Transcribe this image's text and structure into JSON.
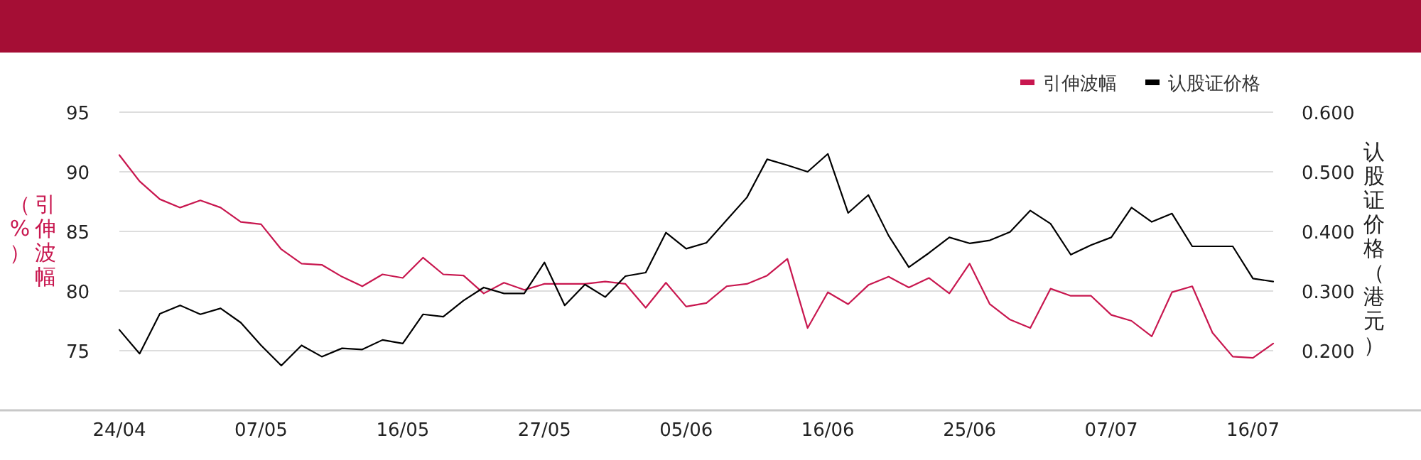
{
  "chart_data": {
    "type": "line",
    "categories": [
      "24/04",
      null,
      null,
      null,
      null,
      null,
      null,
      "07/05",
      null,
      null,
      null,
      null,
      null,
      null,
      "16/05",
      null,
      null,
      null,
      null,
      null,
      null,
      "27/05",
      null,
      null,
      null,
      null,
      null,
      null,
      "05/06",
      null,
      null,
      null,
      null,
      null,
      null,
      "16/06",
      null,
      null,
      null,
      null,
      null,
      null,
      "25/06",
      null,
      null,
      null,
      null,
      null,
      null,
      "07/07",
      null,
      null,
      null,
      null,
      null,
      null,
      "16/07",
      null
    ],
    "series": [
      {
        "name": "引伸波幅",
        "color": "#c8174f",
        "values": [
          91.4,
          89.2,
          87.7,
          87.0,
          87.6,
          87.0,
          85.8,
          85.6,
          83.5,
          82.3,
          82.2,
          81.2,
          80.4,
          81.4,
          81.1,
          82.8,
          81.4,
          81.3,
          79.8,
          80.7,
          80.1,
          80.6,
          80.6,
          80.6,
          80.8,
          80.6,
          78.6,
          80.7,
          78.7,
          79.0,
          80.4,
          80.6,
          81.3,
          82.7,
          76.9,
          79.9,
          78.9,
          80.5,
          81.2,
          80.3,
          81.1,
          79.8,
          82.3,
          78.9,
          77.6,
          76.9,
          80.2,
          79.6,
          79.6,
          78.0,
          77.5,
          76.2,
          79.9,
          80.4,
          76.5,
          74.5,
          74.4,
          75.6
        ]
      },
      {
        "name": "认股证价格",
        "color": "#000000",
        "axis": "y2",
        "values": [
          0.235,
          0.195,
          0.262,
          0.276,
          0.261,
          0.271,
          0.247,
          0.209,
          0.175,
          0.209,
          0.19,
          0.204,
          0.202,
          0.218,
          0.212,
          0.261,
          0.257,
          0.284,
          0.306,
          0.296,
          0.296,
          0.348,
          0.276,
          0.311,
          0.29,
          0.325,
          0.331,
          0.398,
          0.371,
          0.381,
          0.419,
          0.457,
          0.521,
          0.511,
          0.5,
          0.53,
          0.431,
          0.461,
          0.393,
          0.34,
          0.364,
          0.39,
          0.38,
          0.385,
          0.399,
          0.435,
          0.413,
          0.361,
          0.377,
          0.39,
          0.44,
          0.416,
          0.43,
          0.375,
          0.375,
          0.375,
          0.321,
          0.316
        ]
      }
    ],
    "ylabel": "引伸波幅（%）",
    "y2label": "认股证价格（港元）",
    "ylim": [
      70,
      95
    ],
    "yticks": [
      75,
      80,
      85,
      90,
      95
    ],
    "y2lim": [
      0.1,
      0.6
    ],
    "y2ticks": [
      {
        "value": 0.2,
        "label": "0.200"
      },
      {
        "value": 0.3,
        "label": "0.300"
      },
      {
        "value": 0.4,
        "label": "0.400"
      },
      {
        "value": 0.5,
        "label": "0.500"
      },
      {
        "value": 0.6,
        "label": "0.600"
      }
    ],
    "grid": "y",
    "legend": "top right"
  }
}
